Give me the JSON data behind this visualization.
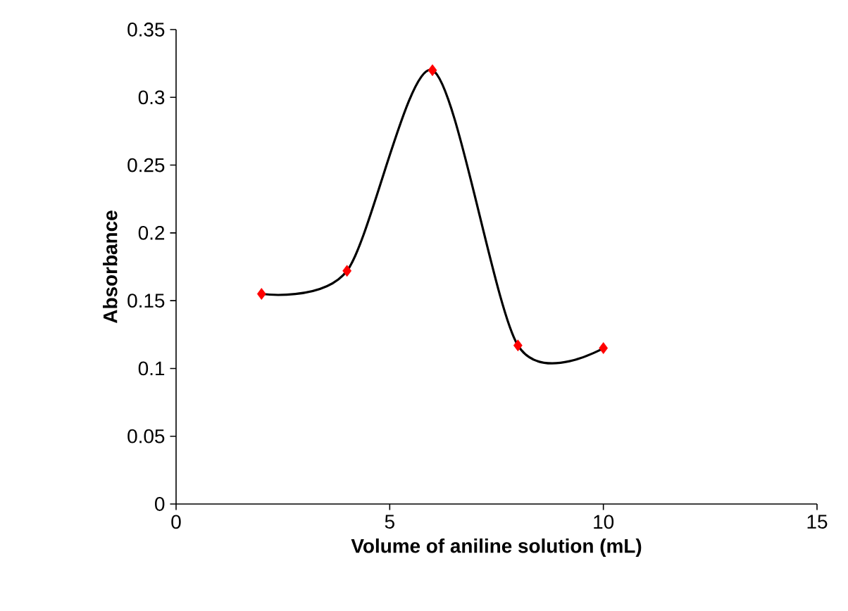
{
  "chart_data": {
    "type": "line",
    "xlabel": "Volume of aniline solution (mL)",
    "ylabel": "Absorbance",
    "x": [
      2,
      4,
      6,
      8,
      10
    ],
    "series": [
      {
        "type": "line",
        "color": "#000000",
        "values": [
          0.155,
          0.172,
          0.32,
          0.117,
          0.115
        ],
        "marker": "none"
      },
      {
        "type": "scatter",
        "color": "#ff0000",
        "values": [
          0.155,
          0.172,
          0.32,
          0.117,
          0.115
        ],
        "marker": "diamond"
      }
    ],
    "xlim": [
      0,
      15
    ],
    "xticks": [
      0,
      5,
      10,
      15
    ],
    "ylim": [
      0,
      0.35
    ],
    "yticks": [
      0,
      0.05,
      0.1,
      0.15,
      0.2,
      0.25,
      0.3,
      0.35
    ],
    "grid": false
  }
}
